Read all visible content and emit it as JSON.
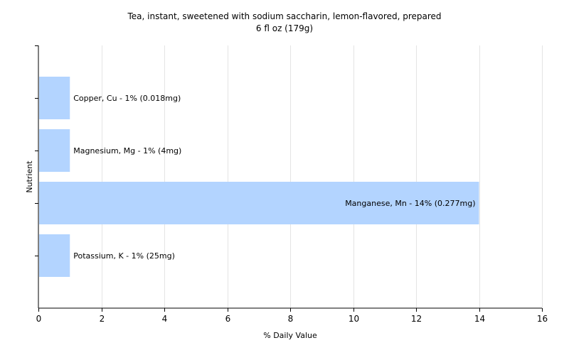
{
  "chart_data": {
    "type": "bar",
    "orientation": "horizontal",
    "title": "Tea, instant, sweetened with sodium saccharin, lemon-flavored, prepared",
    "subtitle": "6 fl oz (179g)",
    "xlabel": "% Daily Value",
    "ylabel": "Nutrient",
    "xlim": [
      0,
      16
    ],
    "xticks": [
      0,
      2,
      4,
      6,
      8,
      10,
      12,
      14,
      16
    ],
    "grid": true,
    "legend": "none",
    "bar_color": "#b3d4ff",
    "categories": [
      "Copper, Cu",
      "Magnesium, Mg",
      "Manganese, Mn",
      "Potassium, K"
    ],
    "values": [
      1,
      1,
      14,
      1
    ],
    "labels": [
      "Copper, Cu - 1% (0.018mg)",
      "Magnesium, Mg - 1% (4mg)",
      "Manganese, Mn - 14% (0.277mg)",
      "Potassium, K - 1% (25mg)"
    ]
  }
}
